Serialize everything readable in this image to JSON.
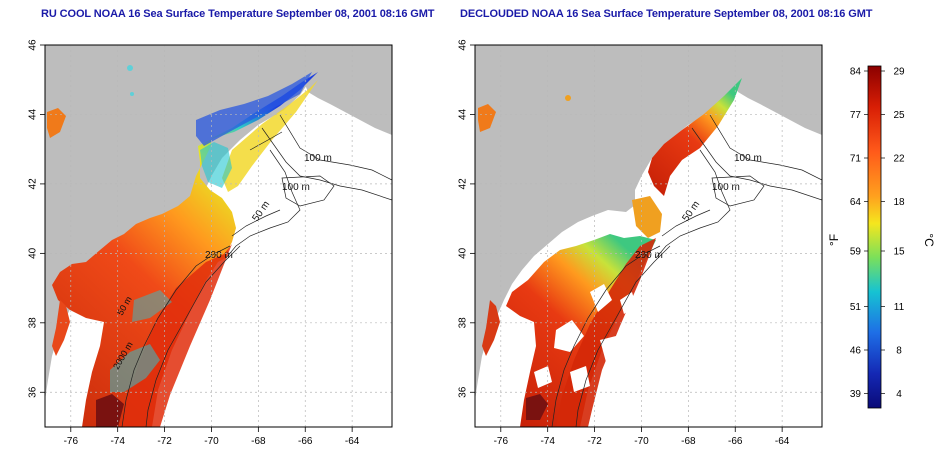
{
  "titles": {
    "left": "RU COOL NOAA 16 Sea Surface Temperature September 08, 2001 08:16 GMT",
    "right": "DECLOUDED NOAA 16 Sea Surface Temperature September 08, 2001 08:16 GMT"
  },
  "axes": {
    "lon_ticks": [
      "-76",
      "-74",
      "-72",
      "-70",
      "-68",
      "-66",
      "-64"
    ],
    "lat_ticks": [
      "36",
      "38",
      "40",
      "42",
      "44",
      "46"
    ],
    "lon_range": [
      -77.1,
      -62.3
    ],
    "lat_range": [
      35.0,
      46.0
    ]
  },
  "contour_labels": {
    "left": [
      "100 m",
      "100 m",
      "50 m",
      "200 m",
      "50 m",
      "2000 m"
    ],
    "right": [
      "100 m",
      "100 m",
      "50 m",
      "200 m"
    ]
  },
  "colorbar": {
    "fahrenheit_ticks": [
      "84",
      "77",
      "71",
      "64",
      "59",
      "51",
      "46",
      "39"
    ],
    "celsius_ticks": [
      "29",
      "25",
      "22",
      "18",
      "15",
      "11",
      "8",
      "4"
    ],
    "fahrenheit_unit": "°F",
    "celsius_unit": "°C",
    "colors": [
      "#8b0000",
      "#d81e05",
      "#ff5a1a",
      "#ffa01e",
      "#f5e61e",
      "#7be05a",
      "#16c3d2",
      "#1e6ee6",
      "#1428b4",
      "#0a0a78"
    ]
  },
  "colors": {
    "land": "#bdbdbd",
    "title": "#1a1aa8"
  }
}
